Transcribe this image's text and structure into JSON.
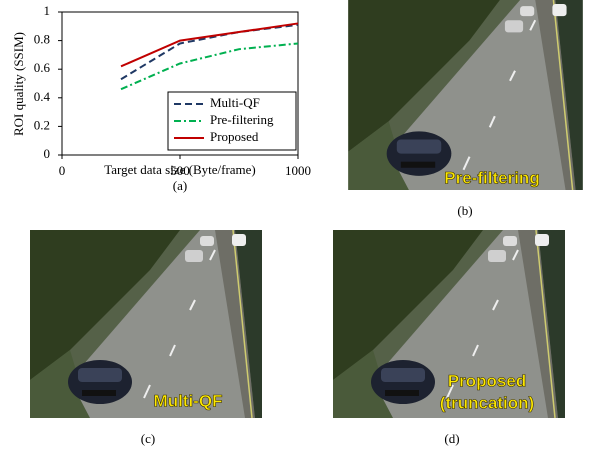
{
  "chart_data": {
    "type": "line",
    "caption": "(a)",
    "x_label": "Target data size (Byte/frame)",
    "y_label": "ROI quality (SSIM)",
    "x": [
      250,
      500,
      750,
      1000
    ],
    "series": [
      {
        "name": "Multi-QF",
        "color": "#1f3864",
        "linestyle": "dashed",
        "values": [
          0.53,
          0.78,
          0.86,
          0.91
        ]
      },
      {
        "name": "Pre-filtering",
        "color": "#00b050",
        "linestyle": "dashdot",
        "values": [
          0.46,
          0.64,
          0.74,
          0.78
        ]
      },
      {
        "name": "Proposed",
        "color": "#c00000",
        "linestyle": "solid",
        "values": [
          0.62,
          0.8,
          0.86,
          0.92
        ]
      }
    ],
    "xlim": [
      0,
      1000
    ],
    "xticks": [
      0,
      500,
      1000
    ],
    "ylim": [
      0,
      1
    ],
    "yticks": [
      0,
      0.2,
      0.4,
      0.6,
      0.8,
      1
    ],
    "legend": "lower right"
  },
  "photos": [
    {
      "caption": "(b)",
      "overlay": [
        "Pre-filtering"
      ]
    },
    {
      "caption": "(c)",
      "overlay": [
        "Multi-QF"
      ]
    },
    {
      "caption": "(d)",
      "overlay": [
        "Proposed",
        "(truncation)"
      ]
    }
  ]
}
